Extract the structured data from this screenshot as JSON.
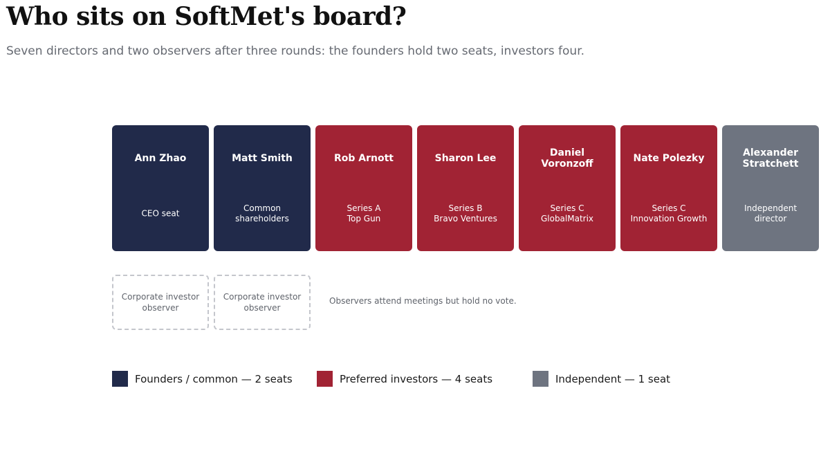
{
  "header": {
    "title": "Who sits on SoftMet's board?",
    "subtitle": "Seven directors and two observers after three rounds: the founders hold two seats, investors four."
  },
  "colors": {
    "founders": "#212a4a",
    "investors": "#a12334",
    "independent": "#6e7480",
    "observer_border": "#c4c6cc"
  },
  "seats": [
    {
      "name": "Ann Zhao",
      "role": "CEO seat",
      "group": "founders"
    },
    {
      "name": "Matt Smith",
      "role": "Common\nshareholders",
      "group": "founders"
    },
    {
      "name": "Rob Arnott",
      "role": "Series A\nTop Gun",
      "group": "investors"
    },
    {
      "name": "Sharon Lee",
      "role": "Series B\nBravo Ventures",
      "group": "investors"
    },
    {
      "name": "Daniel\nVoronzoff",
      "role": "Series C\nGlobalMatrix",
      "group": "investors"
    },
    {
      "name": "Nate Polezky",
      "role": "Series C\nInnovation Growth",
      "group": "investors"
    },
    {
      "name": "Alexander\nStratchett",
      "role": "Independent\ndirector",
      "group": "independent"
    }
  ],
  "observers": [
    {
      "label": "Corporate investor\nobserver"
    },
    {
      "label": "Corporate investor\nobserver"
    }
  ],
  "observer_note": "Observers attend meetings but hold no vote.",
  "legend": [
    {
      "label": "Founders / common — 2 seats",
      "group": "founders"
    },
    {
      "label": "Preferred investors — 4 seats",
      "group": "investors"
    },
    {
      "label": "Independent — 1 seat",
      "group": "independent"
    }
  ]
}
